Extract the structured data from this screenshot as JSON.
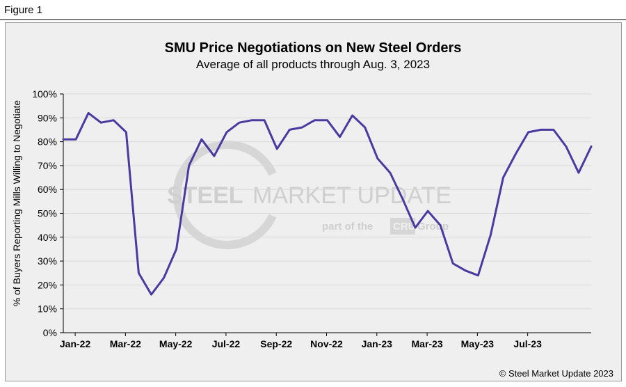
{
  "figure_label": "Figure 1",
  "copyright": "© Steel Market Update 2023",
  "watermark": {
    "brand_bold": "STEEL",
    "brand_rest": " MARKET UPDATE",
    "tagline_pre": "part of the",
    "tagline_logo": "CRU",
    "tagline_post": "Group"
  },
  "chart_data": {
    "type": "line",
    "title": "SMU Price Negotiations on New Steel Orders",
    "subtitle": "Average of all products through Aug. 3, 2023",
    "ylabel": "% of Buyers Reporting Mills Willing to Negotiate",
    "xlabel": "",
    "ylim": [
      0,
      100
    ],
    "yticks": [
      "0%",
      "10%",
      "20%",
      "30%",
      "40%",
      "50%",
      "60%",
      "70%",
      "80%",
      "90%",
      "100%"
    ],
    "xtick_labels": [
      "Jan-22",
      "Mar-22",
      "May-22",
      "Jul-22",
      "Sep-22",
      "Nov-22",
      "Jan-23",
      "Mar-23",
      "May-23",
      "Jul-23"
    ],
    "grid": true,
    "line_color": "#4a3aa0",
    "series": [
      {
        "values": [
          81,
          81,
          92,
          88,
          89,
          84,
          25,
          16,
          23,
          35,
          70,
          81,
          74,
          84,
          88,
          89,
          89,
          77,
          85,
          86,
          89,
          89,
          82,
          91,
          86,
          73,
          67,
          56,
          44,
          51,
          45,
          29,
          26,
          24,
          41,
          65,
          75,
          84,
          85,
          85,
          78,
          67,
          78
        ]
      }
    ]
  }
}
